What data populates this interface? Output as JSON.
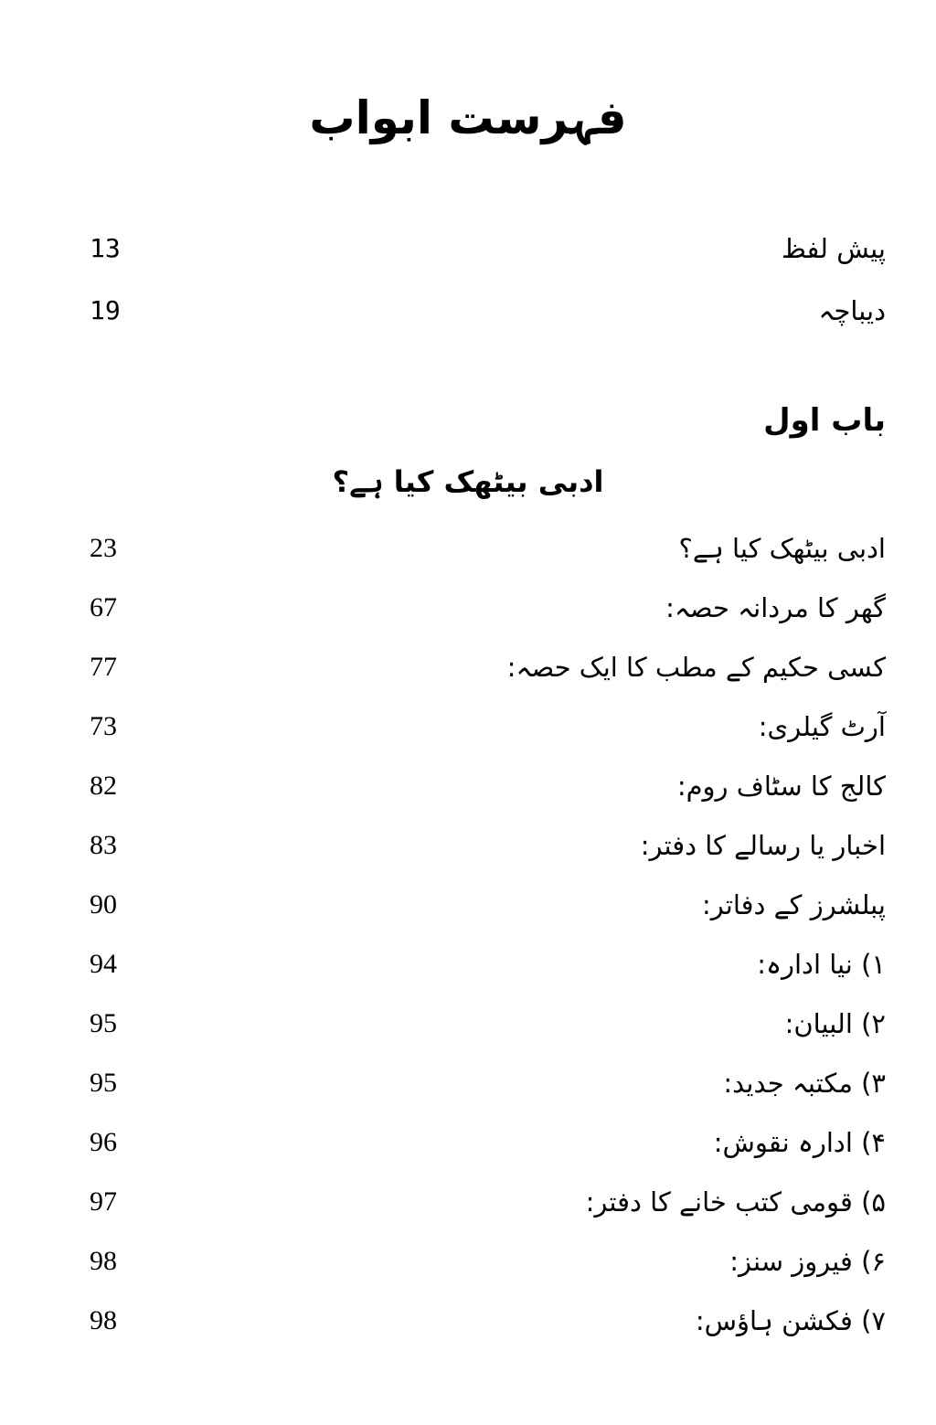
{
  "title": "فہرست ابواب",
  "front_matter": [
    {
      "label": "پیش لفظ",
      "page": "13"
    },
    {
      "label": "دیباچہ",
      "page": "19"
    }
  ],
  "chapter": {
    "heading": "باب اول",
    "subheading": "ادبی بیٹھک کیا ہے؟",
    "entries": [
      {
        "label": "ادبی بیٹھک کیا ہے؟",
        "page": "23"
      },
      {
        "label": "گھر کا مردانہ حصہ:",
        "page": "67"
      },
      {
        "label": "کسی حکیم کے مطب کا ایک حصہ:",
        "page": "77"
      },
      {
        "label": "آرٹ گیلری:",
        "page": "73"
      },
      {
        "label": "کالج کا سٹاف روم:",
        "page": "82"
      },
      {
        "label": "اخبار یا رسالے کا دفتر:",
        "page": "83"
      },
      {
        "label": "پبلشرز کے دفاتر:",
        "page": "90"
      },
      {
        "label": "۱) نیا ادارہ:",
        "page": "94"
      },
      {
        "label": "۲) البیان:",
        "page": "95"
      },
      {
        "label": "۳) مکتبہ جدید:",
        "page": "95"
      },
      {
        "label": "۴) ادارہ نقوش:",
        "page": "96"
      },
      {
        "label": "۵) قومی کتب خانے کا دفتر:",
        "page": "97"
      },
      {
        "label": "۶) فیروز سنز:",
        "page": "98"
      },
      {
        "label": "۷) فکشن ہاؤس:",
        "page": "98"
      }
    ]
  }
}
